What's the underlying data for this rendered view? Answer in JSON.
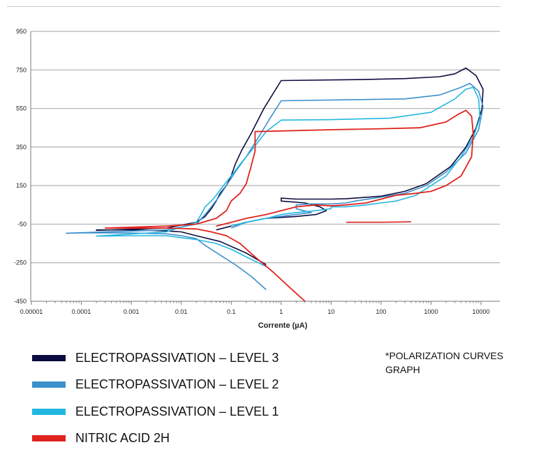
{
  "chart_data": {
    "type": "line",
    "title": "",
    "xlabel": "Corrente (µA)",
    "ylabel": "",
    "xscale": "log",
    "xlim": [
      1e-05,
      20000
    ],
    "ylim": [
      -450,
      950
    ],
    "x_tick_labels": [
      "0.00001",
      "0.0001",
      "0.001",
      "0.01",
      "0.1",
      "1",
      "10",
      "100",
      "1000",
      "10000"
    ],
    "y_ticks": [
      950,
      750,
      550,
      350,
      150,
      -50,
      -250,
      -450
    ],
    "grid": "horizontal",
    "series": [
      {
        "name": "ELECTROPASSIVATION – LEVEL 3",
        "color": "#0b0b3f",
        "points": [
          [
            0.5,
            -260
          ],
          [
            0.2,
            -200
          ],
          [
            0.06,
            -140
          ],
          [
            0.02,
            -110
          ],
          [
            0.01,
            -90
          ],
          [
            0.005,
            -85
          ],
          [
            0.001,
            -80
          ],
          [
            0.0002,
            -80
          ],
          [
            0.0002,
            -82
          ],
          [
            0.005,
            -70
          ],
          [
            0.02,
            -40
          ],
          [
            0.03,
            -10
          ],
          [
            0.04,
            30
          ],
          [
            0.05,
            70
          ],
          [
            0.06,
            110
          ],
          [
            0.08,
            150
          ],
          [
            0.1,
            200
          ],
          [
            0.12,
            260
          ],
          [
            0.16,
            330
          ],
          [
            0.25,
            420
          ],
          [
            0.45,
            550
          ],
          [
            1,
            695
          ],
          [
            40,
            700
          ],
          [
            300,
            705
          ],
          [
            1500,
            715
          ],
          [
            3000,
            730
          ],
          [
            5000,
            760
          ],
          [
            8000,
            720
          ],
          [
            11000,
            650
          ],
          [
            10500,
            550
          ],
          [
            8000,
            450
          ],
          [
            5000,
            350
          ],
          [
            2500,
            250
          ],
          [
            800,
            160
          ],
          [
            300,
            120
          ],
          [
            100,
            95
          ],
          [
            30,
            85
          ],
          [
            20,
            82
          ],
          [
            10,
            80
          ],
          [
            2,
            80
          ],
          [
            1,
            85
          ],
          [
            1,
            70
          ],
          [
            3,
            60
          ],
          [
            6,
            40
          ],
          [
            8,
            20
          ],
          [
            5,
            0
          ],
          [
            2,
            -10
          ],
          [
            0.5,
            -20
          ],
          [
            0.2,
            -40
          ],
          [
            0.1,
            -60
          ],
          [
            0.05,
            -80
          ]
        ]
      },
      {
        "name": "ELECTROPASSIVATION – LEVEL 2",
        "color": "#3d8fcc",
        "points": [
          [
            0.5,
            -390
          ],
          [
            0.25,
            -320
          ],
          [
            0.12,
            -260
          ],
          [
            0.06,
            -210
          ],
          [
            0.03,
            -160
          ],
          [
            0.02,
            -125
          ],
          [
            0.01,
            -110
          ],
          [
            0.005,
            -100
          ],
          [
            0.0008,
            -95
          ],
          [
            0.0001,
            -95
          ],
          [
            5e-05,
            -97
          ],
          [
            0.005,
            -80
          ],
          [
            0.02,
            -50
          ],
          [
            0.03,
            0
          ],
          [
            0.04,
            40
          ],
          [
            0.06,
            100
          ],
          [
            0.08,
            150
          ],
          [
            0.12,
            220
          ],
          [
            0.2,
            300
          ],
          [
            0.35,
            400
          ],
          [
            0.6,
            500
          ],
          [
            1,
            590
          ],
          [
            20,
            595
          ],
          [
            300,
            600
          ],
          [
            1500,
            620
          ],
          [
            4000,
            660
          ],
          [
            6000,
            680
          ],
          [
            9000,
            640
          ],
          [
            11000,
            560
          ],
          [
            9000,
            440
          ],
          [
            5000,
            320
          ],
          [
            2000,
            220
          ],
          [
            800,
            150
          ],
          [
            300,
            110
          ],
          [
            100,
            90
          ],
          [
            30,
            70
          ],
          [
            20,
            60
          ],
          [
            10,
            55
          ],
          [
            4,
            55
          ],
          [
            2,
            50
          ],
          [
            2,
            30
          ],
          [
            4,
            10
          ],
          [
            2,
            0
          ],
          [
            0.5,
            -20
          ],
          [
            0.2,
            -40
          ],
          [
            0.1,
            -70
          ]
        ]
      },
      {
        "name": "ELECTROPASSIVATION – LEVEL 1",
        "color": "#22b7e0",
        "points": [
          [
            0.5,
            -270
          ],
          [
            0.2,
            -220
          ],
          [
            0.1,
            -180
          ],
          [
            0.05,
            -150
          ],
          [
            0.02,
            -130
          ],
          [
            0.01,
            -120
          ],
          [
            0.005,
            -110
          ],
          [
            0.001,
            -110
          ],
          [
            0.0002,
            -112
          ],
          [
            0.005,
            -90
          ],
          [
            0.02,
            -40
          ],
          [
            0.025,
            0
          ],
          [
            0.03,
            40
          ],
          [
            0.04,
            70
          ],
          [
            0.05,
            100
          ],
          [
            0.07,
            150
          ],
          [
            0.1,
            200
          ],
          [
            0.15,
            260
          ],
          [
            0.25,
            330
          ],
          [
            0.5,
            430
          ],
          [
            1,
            490
          ],
          [
            10,
            492
          ],
          [
            150,
            500
          ],
          [
            1000,
            530
          ],
          [
            3000,
            600
          ],
          [
            5000,
            650
          ],
          [
            7000,
            660
          ],
          [
            9000,
            600
          ],
          [
            9500,
            500
          ],
          [
            7000,
            400
          ],
          [
            4000,
            300
          ],
          [
            2000,
            200
          ],
          [
            1000,
            150
          ],
          [
            500,
            100
          ],
          [
            200,
            70
          ],
          [
            100,
            60
          ],
          [
            50,
            50
          ],
          [
            20,
            40
          ],
          [
            10,
            40
          ],
          [
            10,
            30
          ],
          [
            5,
            20
          ],
          [
            2,
            10
          ],
          [
            1,
            0
          ],
          [
            0.5,
            -20
          ],
          [
            0.2,
            -40
          ],
          [
            0.1,
            -60
          ]
        ]
      },
      {
        "name": "NITRIC ACID 2H",
        "color": "#e0231d",
        "points": [
          [
            3,
            -450
          ],
          [
            1.5,
            -380
          ],
          [
            0.7,
            -300
          ],
          [
            0.3,
            -220
          ],
          [
            0.15,
            -150
          ],
          [
            0.08,
            -110
          ],
          [
            0.04,
            -90
          ],
          [
            0.02,
            -75
          ],
          [
            0.005,
            -70
          ],
          [
            0.001,
            -70
          ],
          [
            0.0003,
            -70
          ],
          [
            0.005,
            -60
          ],
          [
            0.02,
            -50
          ],
          [
            0.05,
            -20
          ],
          [
            0.08,
            20
          ],
          [
            0.1,
            70
          ],
          [
            0.15,
            110
          ],
          [
            0.2,
            160
          ],
          [
            0.25,
            250
          ],
          [
            0.3,
            330
          ],
          [
            0.3,
            430
          ],
          [
            10,
            440
          ],
          [
            100,
            445
          ],
          [
            600,
            450
          ],
          [
            2000,
            480
          ],
          [
            3500,
            520
          ],
          [
            5000,
            540
          ],
          [
            6500,
            510
          ],
          [
            7000,
            420
          ],
          [
            6500,
            300
          ],
          [
            4000,
            200
          ],
          [
            2000,
            150
          ],
          [
            1000,
            120
          ],
          [
            500,
            110
          ],
          [
            200,
            100
          ],
          [
            100,
            80
          ],
          [
            50,
            60
          ],
          [
            20,
            50
          ],
          [
            10,
            45
          ],
          [
            5,
            50
          ],
          [
            2,
            40
          ],
          [
            1,
            20
          ],
          [
            0.5,
            0
          ],
          [
            0.2,
            -20
          ],
          [
            0.1,
            -40
          ],
          [
            0.05,
            -60
          ]
        ]
      },
      {
        "name": "NITRIC ACID 2H (tail)",
        "color": "#e0231d",
        "points": [
          [
            20,
            -40
          ],
          [
            100,
            -40
          ],
          [
            400,
            -38
          ]
        ]
      }
    ],
    "legend": [
      {
        "label": "ELECTROPASSIVATION – LEVEL 3",
        "color": "#0b0b3f"
      },
      {
        "label": "ELECTROPASSIVATION – LEVEL 2",
        "color": "#3d8fcc"
      },
      {
        "label": "ELECTROPASSIVATION – LEVEL 1",
        "color": "#22b7e0"
      },
      {
        "label": "NITRIC ACID 2H",
        "color": "#e0231d"
      }
    ]
  },
  "note": {
    "line1": "*POLARIZATION CURVES",
    "line2": "GRAPH"
  }
}
